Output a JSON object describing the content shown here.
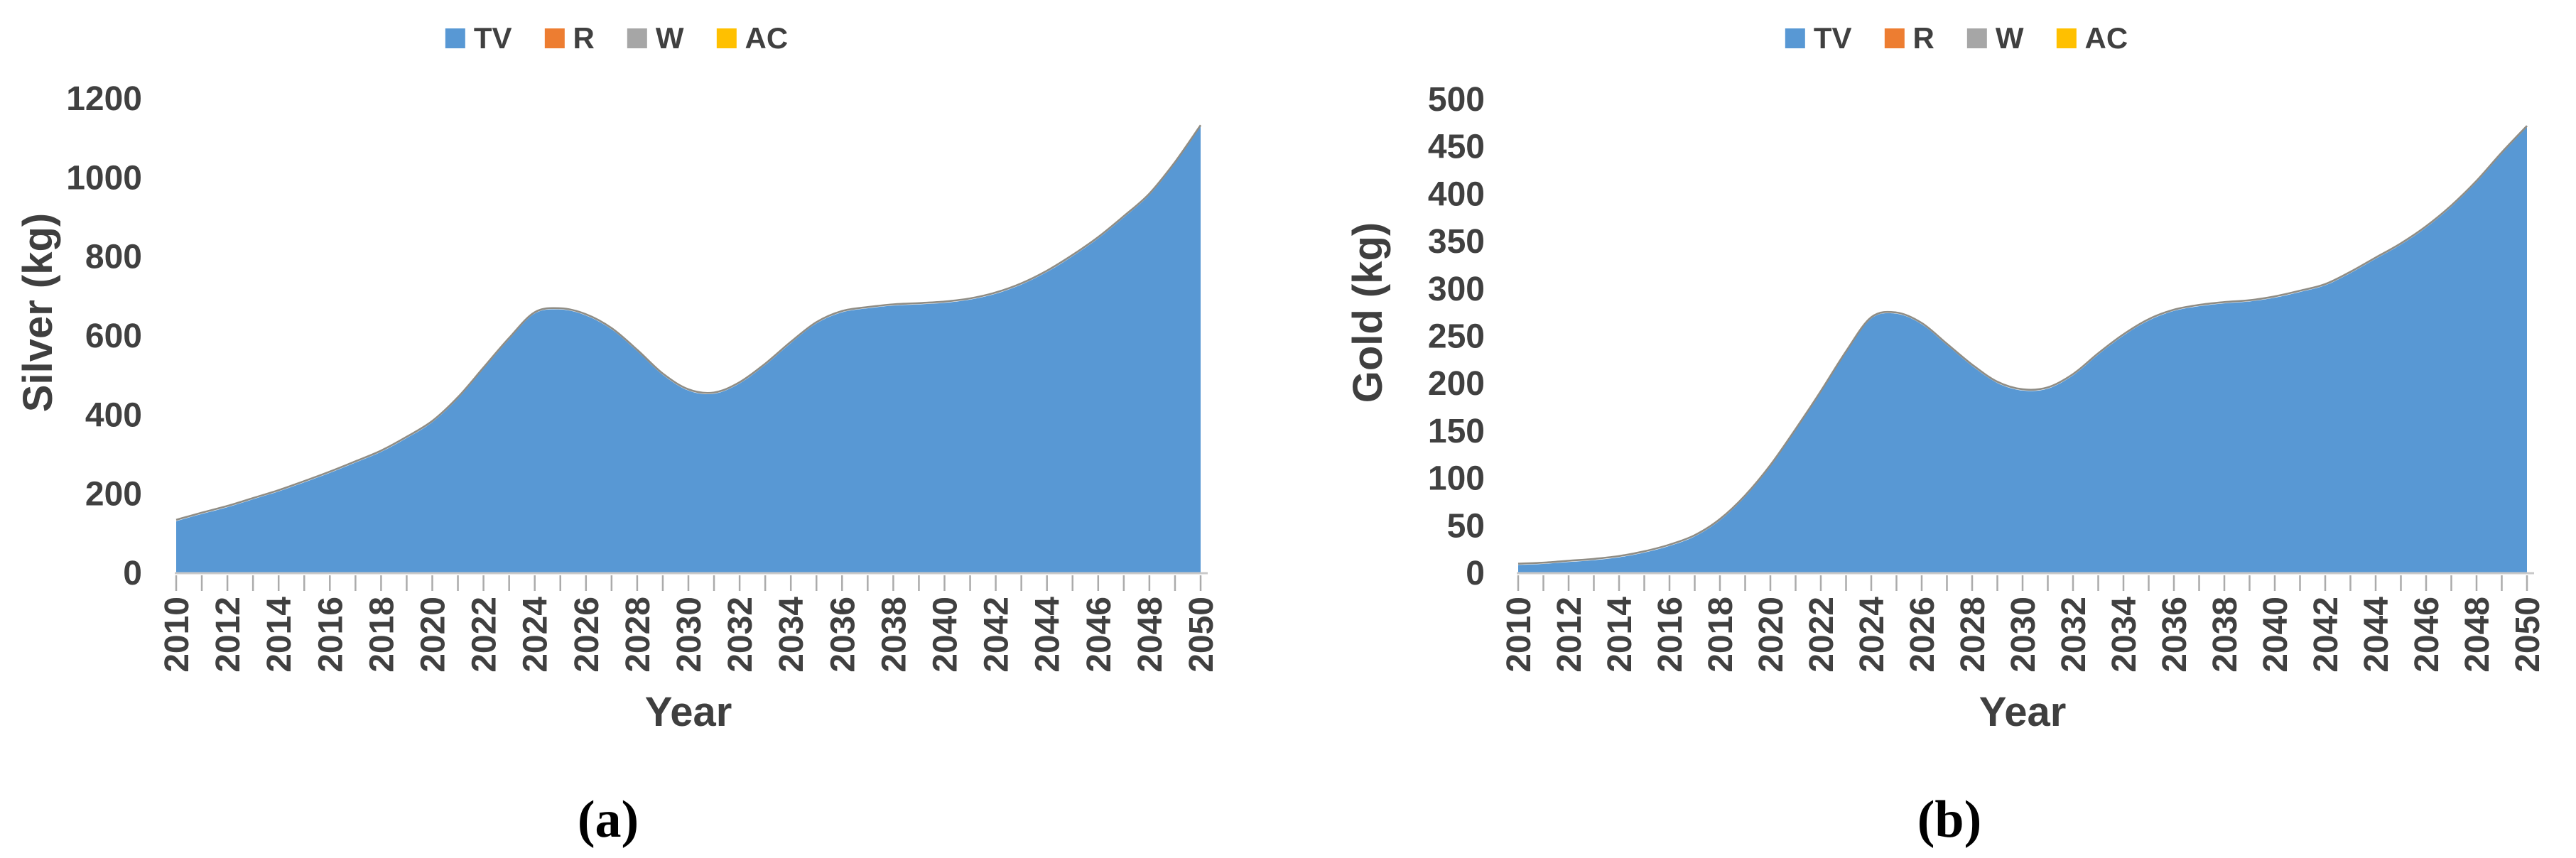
{
  "legend": {
    "items": [
      {
        "label": "TV",
        "color": "#5898D4"
      },
      {
        "label": "R",
        "color": "#ED7D31"
      },
      {
        "label": "W",
        "color": "#A6A6A6"
      },
      {
        "label": "AC",
        "color": "#FFC000"
      }
    ]
  },
  "chart_data": [
    {
      "type": "area",
      "stacked": true,
      "panel": "a",
      "caption": "(a)",
      "title": "",
      "xlabel": "Year",
      "ylabel": "Silver (kg)",
      "ylim": [
        0,
        1200
      ],
      "y_tick_step": 200,
      "y_ticks": [
        0,
        200,
        400,
        600,
        800,
        1000,
        1200
      ],
      "x_tick_label_step": 2,
      "legend_position": "top",
      "grid": false,
      "x": [
        2010,
        2011,
        2012,
        2013,
        2014,
        2015,
        2016,
        2017,
        2018,
        2019,
        2020,
        2021,
        2022,
        2023,
        2024,
        2025,
        2026,
        2027,
        2028,
        2029,
        2030,
        2031,
        2032,
        2033,
        2034,
        2035,
        2036,
        2037,
        2038,
        2039,
        2040,
        2041,
        2042,
        2043,
        2044,
        2045,
        2046,
        2047,
        2048,
        2049,
        2050
      ],
      "series": [
        {
          "name": "TV",
          "color": "#5898D4",
          "values": [
            130,
            148,
            165,
            185,
            205,
            228,
            252,
            278,
            305,
            340,
            380,
            440,
            515,
            590,
            655,
            665,
            650,
            615,
            560,
            500,
            460,
            452,
            478,
            525,
            580,
            630,
            658,
            668,
            675,
            678,
            682,
            690,
            705,
            728,
            760,
            800,
            845,
            898,
            955,
            1035,
            1128
          ]
        },
        {
          "name": "R",
          "color": "#ED7D31",
          "values_constant_approx": 0
        },
        {
          "name": "W",
          "color": "#A6A6A6",
          "values_constant_approx": 4,
          "note": "visible only as a thin gray line along the top edge of the blue area"
        },
        {
          "name": "AC",
          "color": "#FFC000",
          "values_constant_approx": 0
        }
      ]
    },
    {
      "type": "area",
      "stacked": true,
      "panel": "b",
      "caption": "(b)",
      "title": "",
      "xlabel": "Year",
      "ylabel": "Gold (kg)",
      "ylim": [
        0,
        500
      ],
      "y_tick_step": 50,
      "y_ticks": [
        0,
        50,
        100,
        150,
        200,
        250,
        300,
        350,
        400,
        450,
        500
      ],
      "x_tick_label_step": 2,
      "legend_position": "top",
      "grid": false,
      "x": [
        2010,
        2011,
        2012,
        2013,
        2014,
        2015,
        2016,
        2017,
        2018,
        2019,
        2020,
        2021,
        2022,
        2023,
        2024,
        2025,
        2026,
        2027,
        2028,
        2029,
        2030,
        2031,
        2032,
        2033,
        2034,
        2035,
        2036,
        2037,
        2038,
        2039,
        2040,
        2041,
        2042,
        2043,
        2044,
        2045,
        2046,
        2047,
        2048,
        2049,
        2050
      ],
      "series": [
        {
          "name": "TV",
          "color": "#5898D4",
          "values": [
            8,
            9,
            11,
            13,
            16,
            21,
            28,
            38,
            55,
            80,
            112,
            150,
            190,
            232,
            268,
            273,
            262,
            240,
            218,
            200,
            192,
            194,
            208,
            230,
            250,
            266,
            276,
            281,
            284,
            286,
            290,
            296,
            303,
            316,
            331,
            346,
            364,
            386,
            412,
            442,
            470
          ]
        },
        {
          "name": "R",
          "color": "#ED7D31",
          "values_constant_approx": 0
        },
        {
          "name": "W",
          "color": "#A6A6A6",
          "values_constant_approx": 1.5,
          "note": "visible only as a thin gray line along the top edge of the blue area"
        },
        {
          "name": "AC",
          "color": "#FFC000",
          "values_constant_approx": 0
        }
      ]
    }
  ]
}
